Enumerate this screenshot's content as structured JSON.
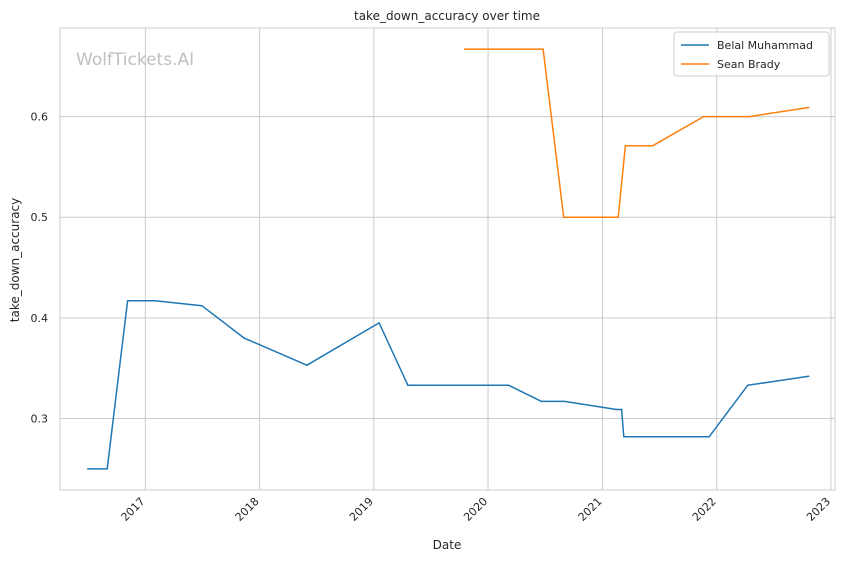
{
  "chart_data": {
    "type": "line",
    "title": "take_down_accuracy over time",
    "xlabel": "Date",
    "ylabel": "take_down_accuracy",
    "watermark": "WolfTickets.AI",
    "x_ticks": [
      "2017",
      "2018",
      "2019",
      "2020",
      "2021",
      "2022",
      "2023"
    ],
    "x_tick_values": [
      "2017-01-01",
      "2018-01-01",
      "2019-01-01",
      "2020-01-01",
      "2021-01-01",
      "2022-01-01",
      "2023-01-01"
    ],
    "y_ticks": [
      0.3,
      0.4,
      0.5,
      0.6
    ],
    "xlim": [
      "2016-04-03",
      "2023-01-14"
    ],
    "ylim": [
      0.229,
      0.688
    ],
    "grid": true,
    "legend_position": "top-right",
    "series": [
      {
        "name": "Belal Muhammad",
        "color": "#1f77b4",
        "points": [
          {
            "x": "2016-07-01",
            "y": 0.25
          },
          {
            "x": "2016-09-01",
            "y": 0.25
          },
          {
            "x": "2016-11-05",
            "y": 0.417
          },
          {
            "x": "2017-02-01",
            "y": 0.417
          },
          {
            "x": "2017-07-01",
            "y": 0.412
          },
          {
            "x": "2017-11-12",
            "y": 0.38
          },
          {
            "x": "2018-06-01",
            "y": 0.353
          },
          {
            "x": "2019-01-18",
            "y": 0.395
          },
          {
            "x": "2019-04-20",
            "y": 0.333
          },
          {
            "x": "2020-03-07",
            "y": 0.333
          },
          {
            "x": "2020-06-20",
            "y": 0.317
          },
          {
            "x": "2020-09-01",
            "y": 0.317
          },
          {
            "x": "2021-02-15",
            "y": 0.309
          },
          {
            "x": "2021-03-03",
            "y": 0.309
          },
          {
            "x": "2021-03-10",
            "y": 0.282
          },
          {
            "x": "2021-12-08",
            "y": 0.282
          },
          {
            "x": "2022-04-10",
            "y": 0.333
          },
          {
            "x": "2022-10-22",
            "y": 0.342
          }
        ]
      },
      {
        "name": "Sean Brady",
        "color": "#ff7f0e",
        "points": [
          {
            "x": "2019-10-18",
            "y": 0.667
          },
          {
            "x": "2020-06-25",
            "y": 0.667
          },
          {
            "x": "2020-08-30",
            "y": 0.5
          },
          {
            "x": "2021-02-20",
            "y": 0.5
          },
          {
            "x": "2021-03-15",
            "y": 0.571
          },
          {
            "x": "2021-06-10",
            "y": 0.571
          },
          {
            "x": "2021-11-20",
            "y": 0.6
          },
          {
            "x": "2022-04-15",
            "y": 0.6
          },
          {
            "x": "2022-10-22",
            "y": 0.609
          }
        ]
      }
    ]
  }
}
